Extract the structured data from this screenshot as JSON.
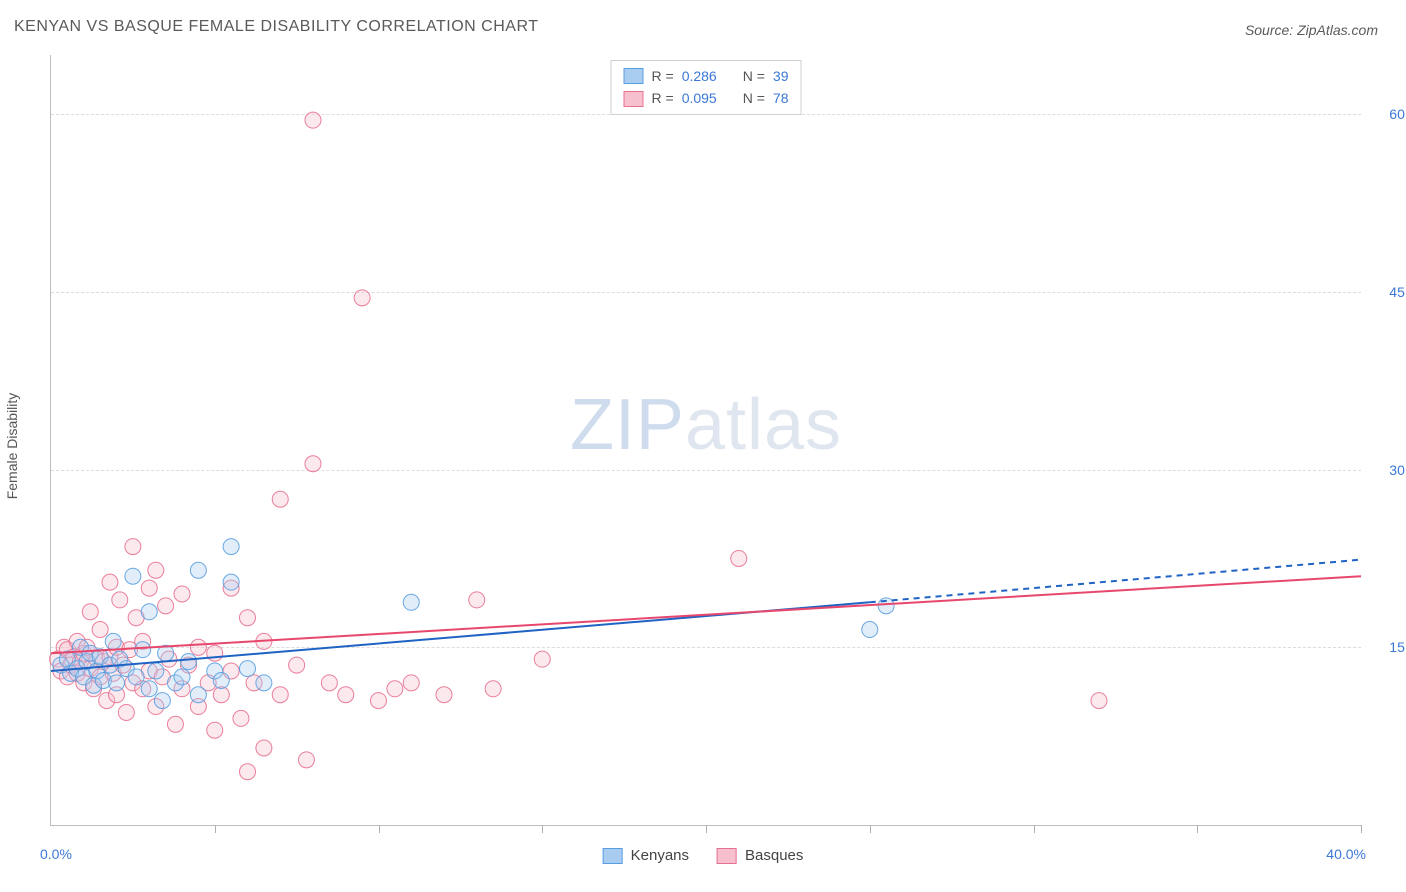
{
  "title": "KENYAN VS BASQUE FEMALE DISABILITY CORRELATION CHART",
  "source_label": "Source: ZipAtlas.com",
  "watermark": {
    "zip": "ZIP",
    "atlas": "atlas"
  },
  "yaxis_label": "Female Disability",
  "chart": {
    "type": "scatter",
    "xlim": [
      0,
      40
    ],
    "ylim": [
      0,
      65
    ],
    "xtick_step": 5,
    "yticks": [
      15,
      30,
      45,
      60
    ],
    "ytick_labels": [
      "15.0%",
      "30.0%",
      "45.0%",
      "60.0%"
    ],
    "xaxis_min_label": "0.0%",
    "xaxis_max_label": "40.0%",
    "grid_color": "#dcdcdc",
    "axis_color": "#bdbdbd",
    "background_color": "#ffffff",
    "tick_label_color": "#3b78d8",
    "marker_radius": 8,
    "marker_fill_opacity": 0.35,
    "marker_stroke_opacity": 0.9,
    "series": [
      {
        "name": "Kenyans",
        "color_fill": "#a9cdf0",
        "color_stroke": "#5a9ee0",
        "trend": {
          "x1": 0,
          "y1": 13.0,
          "x2_solid": 25,
          "y2_solid": 18.8,
          "x2_dash": 40,
          "y2_dash": 22.4,
          "stroke": "#1f63c4",
          "width": 2
        },
        "stats": {
          "R": "0.286",
          "N": "39"
        },
        "points": [
          [
            0.3,
            13.5
          ],
          [
            0.5,
            14.0
          ],
          [
            0.6,
            12.8
          ],
          [
            0.8,
            13.2
          ],
          [
            0.9,
            15.0
          ],
          [
            1.0,
            12.5
          ],
          [
            1.1,
            13.8
          ],
          [
            1.2,
            14.5
          ],
          [
            1.3,
            11.8
          ],
          [
            1.4,
            13.0
          ],
          [
            1.5,
            14.2
          ],
          [
            1.6,
            12.2
          ],
          [
            1.8,
            13.5
          ],
          [
            1.9,
            15.5
          ],
          [
            2.0,
            12.0
          ],
          [
            2.1,
            14.0
          ],
          [
            2.3,
            13.2
          ],
          [
            2.5,
            21.0
          ],
          [
            2.6,
            12.5
          ],
          [
            2.8,
            14.8
          ],
          [
            3.0,
            11.5
          ],
          [
            3.0,
            18.0
          ],
          [
            3.2,
            13.0
          ],
          [
            3.4,
            10.5
          ],
          [
            3.5,
            14.5
          ],
          [
            3.8,
            12.0
          ],
          [
            4.0,
            12.5
          ],
          [
            4.2,
            13.8
          ],
          [
            4.5,
            11.0
          ],
          [
            4.5,
            21.5
          ],
          [
            5.0,
            13.0
          ],
          [
            5.2,
            12.2
          ],
          [
            5.5,
            20.5
          ],
          [
            5.5,
            23.5
          ],
          [
            6.0,
            13.2
          ],
          [
            6.5,
            12.0
          ],
          [
            11.0,
            18.8
          ],
          [
            25.0,
            16.5
          ],
          [
            25.5,
            18.5
          ]
        ]
      },
      {
        "name": "Basques",
        "color_fill": "#f6c0ce",
        "color_stroke": "#e8718f",
        "trend": {
          "x1": 0,
          "y1": 14.5,
          "x2_solid": 40,
          "y2_solid": 21.0,
          "stroke": "#e8476d",
          "width": 2
        },
        "stats": {
          "R": "0.095",
          "N": "78"
        },
        "points": [
          [
            0.2,
            14.0
          ],
          [
            0.3,
            13.0
          ],
          [
            0.4,
            15.0
          ],
          [
            0.5,
            12.5
          ],
          [
            0.5,
            14.8
          ],
          [
            0.6,
            13.5
          ],
          [
            0.7,
            14.2
          ],
          [
            0.8,
            12.8
          ],
          [
            0.8,
            15.5
          ],
          [
            0.9,
            13.8
          ],
          [
            1.0,
            14.5
          ],
          [
            1.0,
            12.0
          ],
          [
            1.1,
            15.0
          ],
          [
            1.2,
            13.2
          ],
          [
            1.2,
            18.0
          ],
          [
            1.3,
            11.5
          ],
          [
            1.4,
            14.0
          ],
          [
            1.5,
            12.5
          ],
          [
            1.5,
            16.5
          ],
          [
            1.6,
            13.8
          ],
          [
            1.7,
            10.5
          ],
          [
            1.8,
            14.2
          ],
          [
            1.8,
            20.5
          ],
          [
            1.9,
            12.8
          ],
          [
            2.0,
            15.0
          ],
          [
            2.0,
            11.0
          ],
          [
            2.1,
            19.0
          ],
          [
            2.2,
            13.5
          ],
          [
            2.3,
            9.5
          ],
          [
            2.4,
            14.8
          ],
          [
            2.5,
            12.0
          ],
          [
            2.5,
            23.5
          ],
          [
            2.6,
            17.5
          ],
          [
            2.8,
            11.5
          ],
          [
            2.8,
            15.5
          ],
          [
            3.0,
            20.0
          ],
          [
            3.0,
            13.0
          ],
          [
            3.2,
            10.0
          ],
          [
            3.2,
            21.5
          ],
          [
            3.4,
            12.5
          ],
          [
            3.5,
            18.5
          ],
          [
            3.6,
            14.0
          ],
          [
            3.8,
            8.5
          ],
          [
            4.0,
            11.5
          ],
          [
            4.0,
            19.5
          ],
          [
            4.2,
            13.5
          ],
          [
            4.5,
            10.0
          ],
          [
            4.5,
            15.0
          ],
          [
            4.8,
            12.0
          ],
          [
            5.0,
            8.0
          ],
          [
            5.0,
            14.5
          ],
          [
            5.2,
            11.0
          ],
          [
            5.5,
            20.0
          ],
          [
            5.5,
            13.0
          ],
          [
            5.8,
            9.0
          ],
          [
            6.0,
            17.5
          ],
          [
            6.0,
            4.5
          ],
          [
            6.2,
            12.0
          ],
          [
            6.5,
            15.5
          ],
          [
            6.5,
            6.5
          ],
          [
            7.0,
            11.0
          ],
          [
            7.0,
            27.5
          ],
          [
            7.5,
            13.5
          ],
          [
            7.8,
            5.5
          ],
          [
            8.0,
            59.5
          ],
          [
            8.0,
            30.5
          ],
          [
            8.5,
            12.0
          ],
          [
            9.0,
            11.0
          ],
          [
            9.5,
            44.5
          ],
          [
            10.0,
            10.5
          ],
          [
            10.5,
            11.5
          ],
          [
            11.0,
            12.0
          ],
          [
            12.0,
            11.0
          ],
          [
            13.0,
            19.0
          ],
          [
            13.5,
            11.5
          ],
          [
            15.0,
            14.0
          ],
          [
            21.0,
            22.5
          ],
          [
            32.0,
            10.5
          ]
        ]
      }
    ]
  },
  "legend_top": {
    "r_label": "R =",
    "n_label": "N ="
  },
  "legend_bottom": [
    {
      "label": "Kenyans",
      "fill": "#a9cdf0",
      "stroke": "#5a9ee0"
    },
    {
      "label": "Basques",
      "fill": "#f6c0ce",
      "stroke": "#e8718f"
    }
  ]
}
